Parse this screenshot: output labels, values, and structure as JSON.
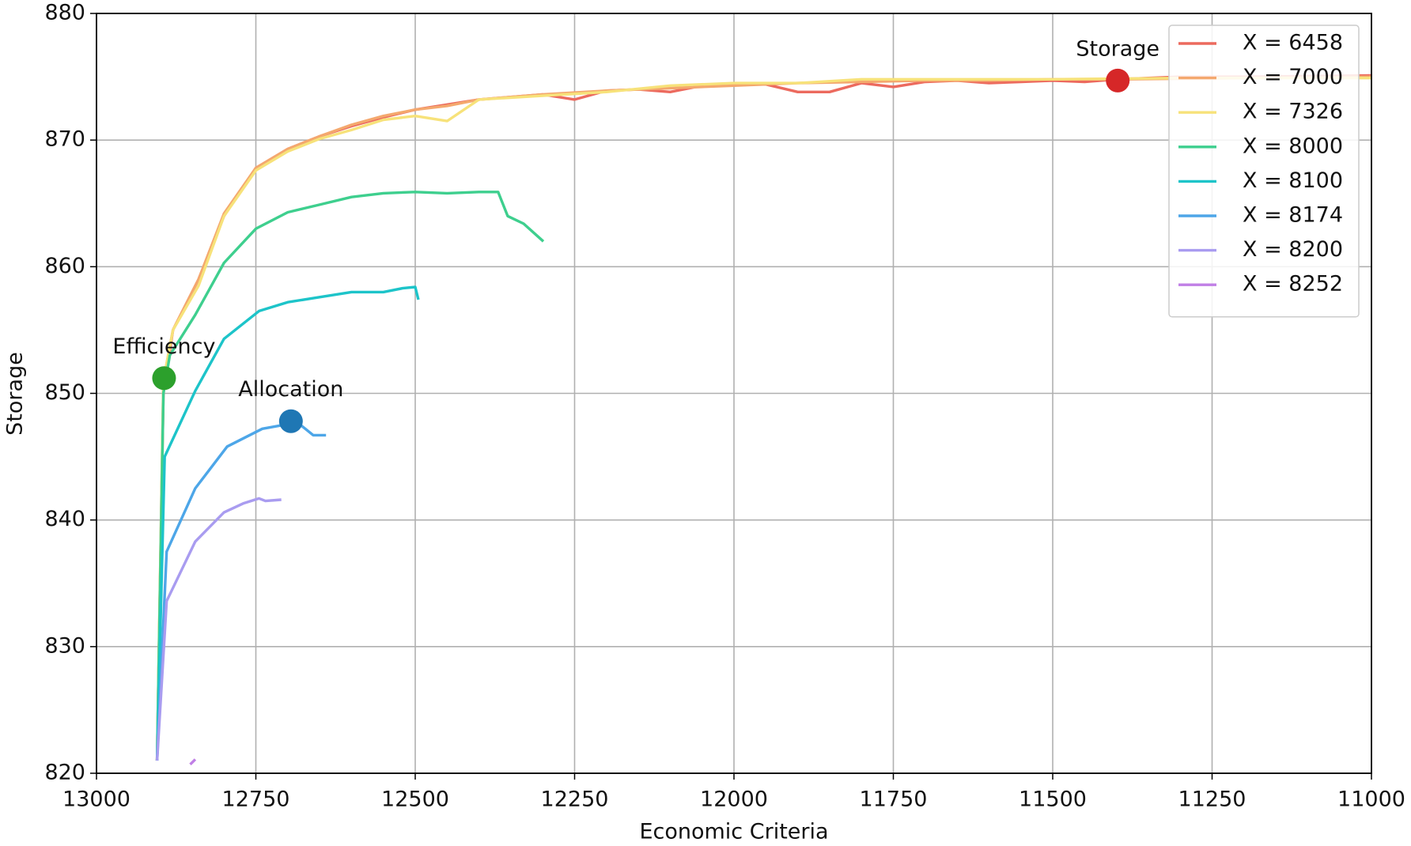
{
  "chart_data": {
    "type": "line",
    "x_label": "Economic Criteria",
    "y_label": "Storage",
    "xlim": [
      13000,
      11000
    ],
    "ylim": [
      820,
      880
    ],
    "xticks": [
      13000,
      12750,
      12500,
      12250,
      12000,
      11750,
      11500,
      11250,
      11000
    ],
    "yticks": [
      820,
      830,
      840,
      850,
      860,
      870,
      880
    ],
    "grid": true,
    "legend": "upper right",
    "series": [
      {
        "name": "X = 6458",
        "color": "#ec6a5e",
        "x": [
          12905,
          12895,
          12880,
          12840,
          12800,
          12750,
          12700,
          12650,
          12600,
          12550,
          12500,
          12450,
          12400,
          12350,
          12300,
          12250,
          12200,
          12150,
          12100,
          12050,
          12000,
          11950,
          11900,
          11850,
          11800,
          11750,
          11700,
          11650,
          11600,
          11550,
          11500,
          11450,
          11400,
          11300,
          11200,
          11000
        ],
        "values": [
          821,
          850,
          855,
          859,
          864,
          867.8,
          869.3,
          870.3,
          871.1,
          871.8,
          872.4,
          872.8,
          873.2,
          873.4,
          873.6,
          873.2,
          873.9,
          874.0,
          873.8,
          874.3,
          874.4,
          874.4,
          873.8,
          873.8,
          874.5,
          874.2,
          874.6,
          874.7,
          874.5,
          874.6,
          874.7,
          874.6,
          874.8,
          875.0,
          875.0,
          875.1
        ]
      },
      {
        "name": "X = 7000",
        "color": "#f4a86e",
        "x": [
          12905,
          12895,
          12880,
          12840,
          12800,
          12750,
          12700,
          12650,
          12600,
          12550,
          12500,
          12450,
          12400,
          12300,
          12200,
          12100,
          12000,
          11900,
          11800,
          11700,
          11600,
          11500,
          11400,
          11200,
          11000
        ],
        "values": [
          821,
          851,
          855,
          859,
          864.2,
          867.8,
          869.3,
          870.3,
          871.2,
          871.9,
          872.4,
          872.7,
          873.2,
          873.6,
          873.9,
          874.1,
          874.3,
          874.5,
          874.6,
          874.7,
          874.7,
          874.8,
          874.8,
          874.9,
          875.0
        ]
      },
      {
        "name": "X = 7326",
        "color": "#f7e27a",
        "x": [
          12905,
          12895,
          12880,
          12840,
          12800,
          12750,
          12700,
          12650,
          12600,
          12550,
          12500,
          12450,
          12400,
          12300,
          12200,
          12100,
          12000,
          11900,
          11800,
          11700,
          11500,
          11300,
          11000
        ],
        "values": [
          821,
          851,
          855,
          858.5,
          864,
          867.6,
          869.1,
          870.1,
          870.8,
          871.6,
          871.9,
          871.5,
          873.2,
          873.5,
          873.8,
          874.3,
          874.5,
          874.5,
          874.8,
          874.8,
          874.8,
          874.9,
          874.9
        ]
      },
      {
        "name": "X = 8000",
        "color": "#3ecf8e",
        "x": [
          12905,
          12895,
          12885,
          12845,
          12800,
          12750,
          12700,
          12650,
          12600,
          12550,
          12500,
          12450,
          12400,
          12370,
          12355,
          12330,
          12310,
          12299
        ],
        "values": [
          821,
          850,
          853,
          856.2,
          860.3,
          863,
          864.3,
          864.9,
          865.5,
          865.8,
          865.9,
          865.8,
          865.9,
          865.9,
          864,
          863.4,
          862.5,
          862
        ]
      },
      {
        "name": "X = 8100",
        "color": "#1dc4c9",
        "x": [
          12905,
          12893,
          12845,
          12800,
          12745,
          12700,
          12650,
          12600,
          12550,
          12520,
          12500,
          12495
        ],
        "values": [
          821,
          845,
          850.2,
          854.3,
          856.5,
          857.2,
          857.6,
          858,
          858,
          858.3,
          858.4,
          857.4
        ]
      },
      {
        "name": "X = 8174",
        "color": "#4da6e8",
        "x": [
          12905,
          12890,
          12845,
          12795,
          12740,
          12685,
          12670,
          12660,
          12640
        ],
        "values": [
          821,
          837.5,
          842.5,
          845.8,
          847.2,
          847.7,
          847.1,
          846.7,
          846.7
        ]
      },
      {
        "name": "X = 8200",
        "color": "#a99cf0",
        "x": [
          12905,
          12890,
          12845,
          12800,
          12770,
          12745,
          12735,
          12710
        ],
        "values": [
          821,
          833.6,
          838.3,
          840.6,
          841.3,
          841.7,
          841.5,
          841.6
        ]
      },
      {
        "name": "X = 8252",
        "color": "#c07fe6",
        "x": [
          12853,
          12845
        ],
        "values": [
          820.7,
          821.1
        ]
      }
    ],
    "points": [
      {
        "label": "Storage",
        "x": 11398,
        "y": 874.7,
        "color": "#d62728"
      },
      {
        "label": "Efficiency",
        "x": 12894,
        "y": 851.2,
        "color": "#2ca02c"
      },
      {
        "label": "Allocation",
        "x": 12695,
        "y": 847.8,
        "color": "#1f77b4"
      }
    ]
  }
}
